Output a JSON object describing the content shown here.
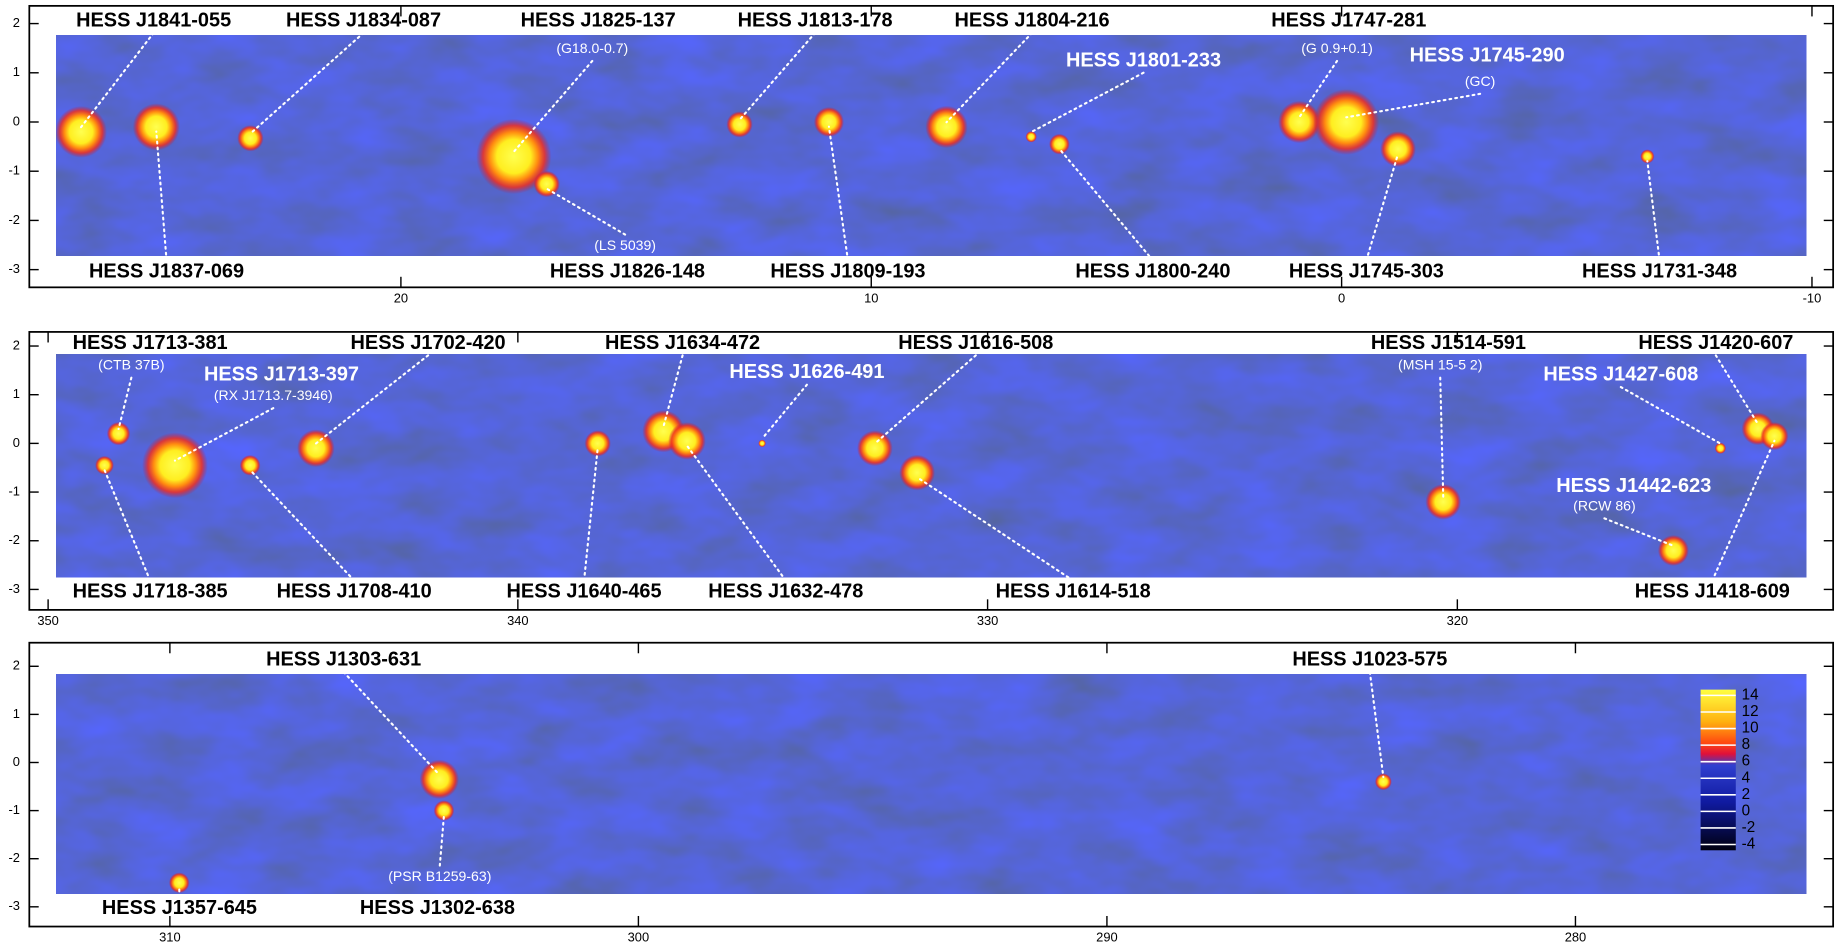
{
  "chart_data": [
    {
      "type": "scatter",
      "xlim": [
        27.9,
        -10.45
      ],
      "ylim": [
        -3.36,
        2.36
      ],
      "xticks": [
        20,
        10,
        0,
        -10
      ],
      "yticks": [
        2,
        1,
        0,
        -1,
        -2,
        -3
      ],
      "points": [
        {
          "label": "HESS J1841-055",
          "x": 26.8,
          "y": -0.2,
          "size": 0.55
        },
        {
          "label": "HESS J1837-069",
          "x": 25.2,
          "y": -0.1,
          "size": 0.5
        },
        {
          "label": "HESS J1834-087",
          "x": 23.2,
          "y": -0.33,
          "size": 0.28
        },
        {
          "label": "HESS J1825-137",
          "note": "(G18.0-0.7)",
          "x": 17.6,
          "y": -0.7,
          "size": 0.8
        },
        {
          "label": "HESS J1826-148",
          "note": "(LS 5039)",
          "x": 16.9,
          "y": -1.26,
          "size": 0.28
        },
        {
          "label": "HESS J1813-178",
          "x": 12.8,
          "y": -0.05,
          "size": 0.28
        },
        {
          "label": "HESS J1809-193",
          "x": 10.9,
          "y": 0.0,
          "size": 0.32
        },
        {
          "label": "HESS J1804-216",
          "x": 8.4,
          "y": -0.1,
          "size": 0.45
        },
        {
          "label": "HESS J1801-233",
          "x": 6.6,
          "y": -0.3,
          "size": 0.12
        },
        {
          "label": "HESS J1800-240",
          "x": 6.0,
          "y": -0.45,
          "size": 0.22
        },
        {
          "label": "HESS J1747-281",
          "note": "(G 0.9+0.1)",
          "x": 0.9,
          "y": 0.0,
          "size": 0.45
        },
        {
          "label": "HESS J1745-290",
          "note": "(GC)",
          "x": -0.1,
          "y": 0.0,
          "size": 0.7
        },
        {
          "label": "HESS J1745-303",
          "x": -1.2,
          "y": -0.55,
          "size": 0.38
        },
        {
          "label": "HESS J1731-348",
          "x": -6.5,
          "y": -0.7,
          "size": 0.15
        }
      ]
    },
    {
      "type": "scatter",
      "xlim": [
        350.4,
        312.0
      ],
      "ylim": [
        -3.42,
        2.29
      ],
      "xticks": [
        350,
        340,
        330,
        320
      ],
      "yticks": [
        2,
        1,
        0,
        -1,
        -2,
        -3
      ],
      "points": [
        {
          "label": "HESS J1713-381",
          "note": "(CTB 37B)",
          "x": 348.5,
          "y": 0.2,
          "size": 0.25
        },
        {
          "label": "HESS J1713-397",
          "note": "(RX J1713.7-3946)",
          "x": 347.3,
          "y": -0.45,
          "size": 0.7
        },
        {
          "label": "HESS J1702-420",
          "x": 344.3,
          "y": -0.1,
          "size": 0.4
        },
        {
          "label": "HESS J1718-385",
          "x": 348.8,
          "y": -0.45,
          "size": 0.2
        },
        {
          "label": "HESS J1708-410",
          "x": 345.7,
          "y": -0.45,
          "size": 0.22
        },
        {
          "label": "HESS J1634-472",
          "x": 336.9,
          "y": 0.25,
          "size": 0.45
        },
        {
          "label": "HESS J1640-465",
          "x": 338.3,
          "y": 0.0,
          "size": 0.28
        },
        {
          "label": "HESS J1626-491",
          "x": 334.8,
          "y": 0.0,
          "size": 0.08
        },
        {
          "label": "HESS J1632-478",
          "x": 336.4,
          "y": 0.05,
          "size": 0.4
        },
        {
          "label": "HESS J1616-508",
          "x": 332.4,
          "y": -0.1,
          "size": 0.38
        },
        {
          "label": "HESS J1614-518",
          "x": 331.5,
          "y": -0.6,
          "size": 0.38
        },
        {
          "label": "HESS J1514-591",
          "note": "(MSH 15-5 2)",
          "x": 320.3,
          "y": -1.2,
          "size": 0.38
        },
        {
          "label": "HESS J1427-608",
          "x": 314.4,
          "y": -0.1,
          "size": 0.12
        },
        {
          "label": "HESS J1420-607",
          "x": 313.6,
          "y": 0.3,
          "size": 0.35
        },
        {
          "label": "HESS J1442-623",
          "note": "(RCW 86)",
          "x": 315.4,
          "y": -2.2,
          "size": 0.33
        },
        {
          "label": "HESS J1418-609",
          "x": 313.25,
          "y": 0.15,
          "size": 0.3
        }
      ]
    },
    {
      "type": "scatter",
      "xlim": [
        313.0,
        274.5
      ],
      "ylim": [
        -3.41,
        2.49
      ],
      "xticks": [
        310,
        300,
        290,
        280
      ],
      "yticks": [
        2,
        1,
        0,
        -1,
        -2,
        -3
      ],
      "points": [
        {
          "label": "HESS J1303-631",
          "x": 304.25,
          "y": -0.35,
          "size": 0.42
        },
        {
          "label": "HESS J1302-638",
          "note": "(PSR B1259-63)",
          "x": 304.15,
          "y": -1.0,
          "size": 0.22
        },
        {
          "label": "HESS J1357-645",
          "x": 309.8,
          "y": -2.5,
          "size": 0.22
        },
        {
          "label": "HESS J1023-575",
          "x": 284.1,
          "y": -0.4,
          "size": 0.18
        }
      ],
      "colorbar": {
        "lim": [
          -4.7,
          14.7
        ],
        "ticks": [
          14,
          12,
          10,
          8,
          6,
          4,
          2,
          0,
          -2,
          -4
        ]
      }
    }
  ]
}
